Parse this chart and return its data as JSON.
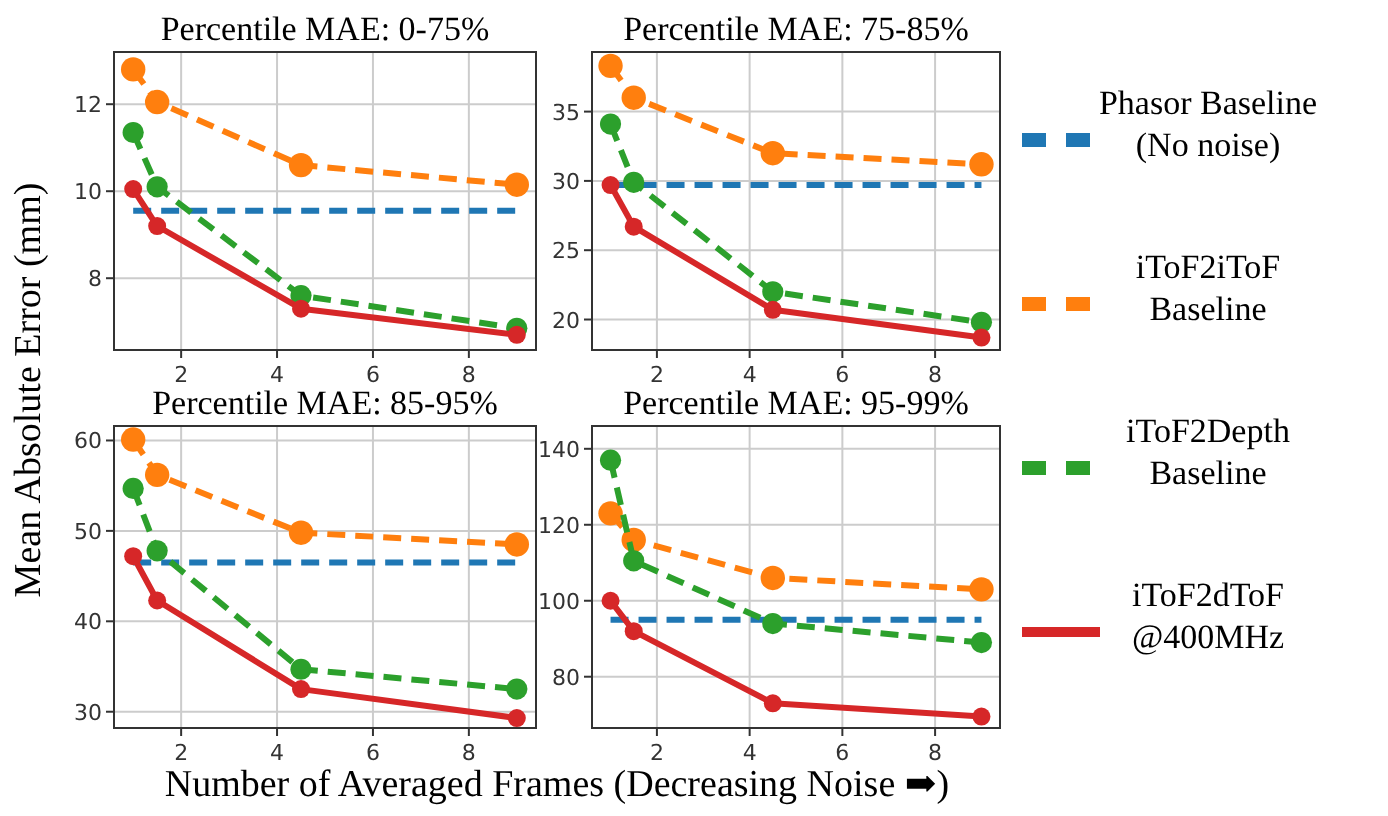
{
  "chart_data": [
    {
      "type": "line",
      "title": "Percentile MAE: 0-75%",
      "ylabel": "Mean Absolute Error (mm)",
      "x": [
        1,
        1.5,
        4.5,
        9
      ],
      "xlim": [
        0.6,
        9.4
      ],
      "xticks": [
        2,
        4,
        6,
        8
      ],
      "ylim": [
        6.35,
        13.2
      ],
      "yticks": [
        8,
        10,
        12
      ],
      "grid": true,
      "marker": "circle",
      "legend": "right",
      "series": [
        {
          "name": "Phasor Baseline\n(No noise)",
          "color": "#1f77b4",
          "line_style": "dashed",
          "marker": "none",
          "values": [
            9.55,
            9.55,
            9.55,
            9.55
          ]
        },
        {
          "name": "iToF2iToF\nBaseline",
          "color": "#ff7f0e",
          "line_style": "dashed",
          "values": [
            12.8,
            12.05,
            10.6,
            10.15
          ]
        },
        {
          "name": "iToF2Depth\nBaseline",
          "color": "#2ca02c",
          "line_style": "dashed",
          "values": [
            11.35,
            10.1,
            7.6,
            6.85
          ]
        },
        {
          "name": "iToF2dToF\n@400MHz",
          "color": "#d62728",
          "line_style": "solid",
          "values": [
            10.05,
            9.2,
            7.3,
            6.7
          ]
        }
      ]
    },
    {
      "type": "line",
      "title": "Percentile MAE: 75-85%",
      "x": [
        1,
        1.5,
        4.5,
        9
      ],
      "xlim": [
        0.6,
        9.4
      ],
      "xticks": [
        2,
        4,
        6,
        8
      ],
      "ylim": [
        17.8,
        39.3
      ],
      "yticks": [
        20,
        25,
        30,
        35
      ],
      "grid": true,
      "marker": "circle",
      "series": [
        {
          "color": "#1f77b4",
          "line_style": "dashed",
          "marker": "none",
          "values": [
            29.7,
            29.7,
            29.7,
            29.7
          ]
        },
        {
          "color": "#ff7f0e",
          "line_style": "dashed",
          "values": [
            38.3,
            36,
            32,
            31.2
          ]
        },
        {
          "color": "#2ca02c",
          "line_style": "dashed",
          "values": [
            34.1,
            29.9,
            22,
            19.8
          ]
        },
        {
          "color": "#d62728",
          "line_style": "solid",
          "values": [
            29.7,
            26.7,
            20.7,
            18.7
          ]
        }
      ]
    },
    {
      "type": "line",
      "title": "Percentile MAE: 85-95%",
      "xlabel": "Number of Averaged Frames (Decreasing Noise ➡)",
      "x": [
        1,
        1.5,
        4.5,
        9
      ],
      "xlim": [
        0.6,
        9.4
      ],
      "xticks": [
        2,
        4,
        6,
        8
      ],
      "ylim": [
        28.2,
        61.6
      ],
      "yticks": [
        30,
        40,
        50,
        60
      ],
      "grid": true,
      "marker": "circle",
      "series": [
        {
          "color": "#1f77b4",
          "line_style": "dashed",
          "marker": "none",
          "values": [
            46.5,
            46.5,
            46.5,
            46.5
          ]
        },
        {
          "color": "#ff7f0e",
          "line_style": "dashed",
          "values": [
            60.1,
            56.2,
            49.8,
            48.5
          ]
        },
        {
          "color": "#2ca02c",
          "line_style": "dashed",
          "values": [
            54.7,
            47.8,
            34.7,
            32.5
          ]
        },
        {
          "color": "#d62728",
          "line_style": "solid",
          "values": [
            47.2,
            42.3,
            32.5,
            29.3
          ]
        }
      ]
    },
    {
      "type": "line",
      "title": "Percentile MAE: 95-99%",
      "x": [
        1,
        1.5,
        4.5,
        9
      ],
      "xlim": [
        0.6,
        9.4
      ],
      "xticks": [
        2,
        4,
        6,
        8
      ],
      "ylim": [
        66.5,
        146
      ],
      "yticks": [
        80,
        100,
        120,
        140
      ],
      "grid": true,
      "marker": "circle",
      "series": [
        {
          "color": "#1f77b4",
          "line_style": "dashed",
          "marker": "none",
          "values": [
            95,
            95,
            95,
            95
          ]
        },
        {
          "color": "#ff7f0e",
          "line_style": "dashed",
          "values": [
            123,
            116,
            106,
            103
          ]
        },
        {
          "color": "#2ca02c",
          "line_style": "dashed",
          "values": [
            137,
            110.5,
            94,
            89
          ]
        },
        {
          "color": "#d62728",
          "line_style": "solid",
          "values": [
            100,
            92,
            73,
            69.5
          ]
        }
      ]
    }
  ]
}
